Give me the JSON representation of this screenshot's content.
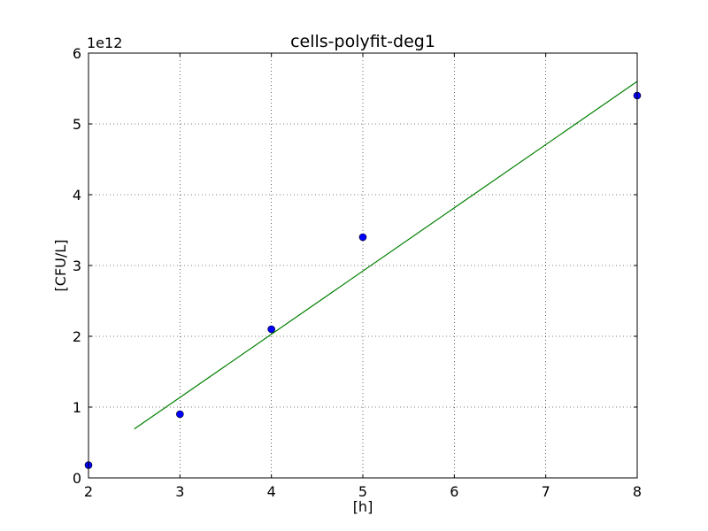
{
  "chart_data": {
    "type": "scatter",
    "title": "cells-polyfit-deg1",
    "xlabel": "[h]",
    "ylabel": "[CFU/L]",
    "y_offset_label": "1e12",
    "xlim": [
      2,
      8
    ],
    "ylim": [
      0,
      6
    ],
    "x_ticks": [
      "2",
      "3",
      "4",
      "5",
      "6",
      "7",
      "8"
    ],
    "y_ticks": [
      "0",
      "1",
      "2",
      "3",
      "4",
      "5",
      "6"
    ],
    "grid": true,
    "series": [
      {
        "kind": "markers",
        "color": "#0000ff",
        "x": [
          2,
          3,
          4,
          5,
          8
        ],
        "y": [
          0.18,
          0.9,
          2.1,
          3.4,
          5.4
        ]
      },
      {
        "kind": "line",
        "color": "#008000",
        "x": [
          2.5,
          8
        ],
        "y": [
          0.69,
          5.6
        ]
      }
    ]
  }
}
